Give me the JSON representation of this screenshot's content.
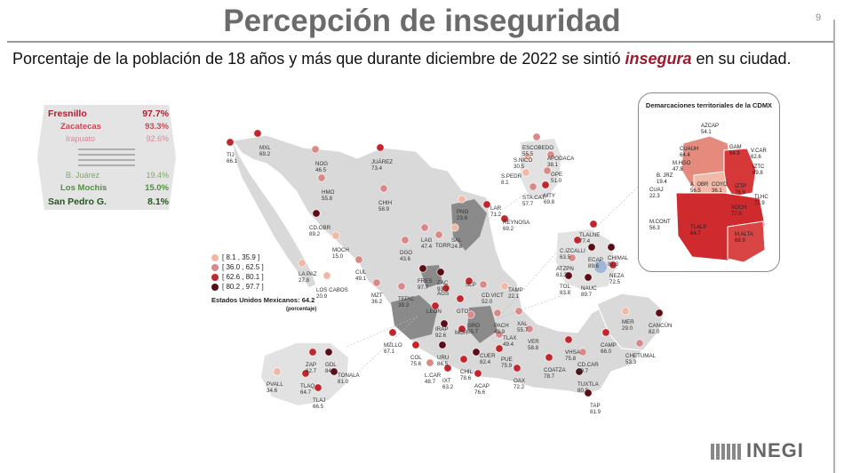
{
  "page": {
    "title": "Percepción de inseguridad",
    "number": "9",
    "subtitle_pre": "Porcentaje de la población de 18 años y más que durante diciembre de 2022 se sintió ",
    "subtitle_hl": "insegura",
    "subtitle_post": " en su ciudad."
  },
  "ranking": {
    "top": [
      {
        "name": "Fresnillo",
        "value": "97.7%"
      },
      {
        "name": "Zacatecas",
        "value": "93.3%"
      },
      {
        "name": "Irapuato",
        "value": "92.6%"
      }
    ],
    "bottom": [
      {
        "name": "B. Juárez",
        "value": "19.4%"
      },
      {
        "name": "Los Mochis",
        "value": "15.0%"
      },
      {
        "name": "San Pedro G.",
        "value": "8.1%"
      }
    ]
  },
  "legend": {
    "items": [
      {
        "label": "[ 8.1 , 35.9 ]",
        "color": "#f2b8a3"
      },
      {
        "label": "[ 36.0 , 62.5 ]",
        "color": "#d98a88"
      },
      {
        "label": "[ 62.6 , 80.1 ]",
        "color": "#c0262c"
      },
      {
        "label": "[ 80.2 , 97.7 ]",
        "color": "#5a0d14"
      }
    ],
    "national_label": "Estados Unidos Mexicanos: 64.2",
    "national_unit": "(porcentaje)"
  },
  "inset": {
    "title": "Demarcaciones territoriales de la CDMX",
    "areas": [
      {
        "name": "AZCAP",
        "value": "54.1"
      },
      {
        "name": "GAM",
        "value": "64.9"
      },
      {
        "name": "CUAUH",
        "value": "64.4"
      },
      {
        "name": "V.CAR",
        "value": "62.6"
      },
      {
        "name": "M.HGO",
        "value": "47.8"
      },
      {
        "name": "IZTC",
        "value": "69.8"
      },
      {
        "name": "B. JRZ",
        "value": "19.4"
      },
      {
        "name": "CUAJ",
        "value": "22.3"
      },
      {
        "name": "A. OBR",
        "value": "56.5"
      },
      {
        "name": "COYO",
        "value": "36.1"
      },
      {
        "name": "IZTP",
        "value": "76.9"
      },
      {
        "name": "TLHC",
        "value": "72.9"
      },
      {
        "name": "XOCH",
        "value": "77.0"
      },
      {
        "name": "M.CONT",
        "value": "56.3"
      },
      {
        "name": "TLALP",
        "value": "64.7"
      },
      {
        "name": "M.ALTA",
        "value": "68.9"
      }
    ]
  },
  "cities": [
    {
      "name": "TIJ",
      "value": "66.1",
      "color": "#c0262c"
    },
    {
      "name": "MXL",
      "value": "69.2",
      "color": "#c0262c"
    },
    {
      "name": "NOG",
      "value": "46.5",
      "color": "#d98a88"
    },
    {
      "name": "JUÁREZ",
      "value": "73.4",
      "color": "#c0262c"
    },
    {
      "name": "HMO",
      "value": "55.8",
      "color": "#d98a88"
    },
    {
      "name": "CHIH",
      "value": "58.9",
      "color": "#d98a88"
    },
    {
      "name": "CD.OBR",
      "value": "89.2",
      "color": "#5a0d14"
    },
    {
      "name": "MOCH",
      "value": "15.0",
      "color": "#f2b8a3"
    },
    {
      "name": "LA PAZ",
      "value": "27.8",
      "color": "#f2b8a3"
    },
    {
      "name": "LOS CABOS",
      "value": "20.9",
      "color": "#f2b8a3"
    },
    {
      "name": "CUL",
      "value": "49.1",
      "color": "#d98a88"
    },
    {
      "name": "MZT",
      "value": "36.2",
      "color": "#d98a88"
    },
    {
      "name": "DGO",
      "value": "43.6",
      "color": "#d98a88"
    },
    {
      "name": "LAG",
      "value": "47.4",
      "color": "#d98a88"
    },
    {
      "name": "TORR",
      "value": "",
      "color": "#d98a88"
    },
    {
      "name": "SAL",
      "value": "24.8",
      "color": "#f2b8a3"
    },
    {
      "name": "PNG",
      "value": "23.6",
      "color": "#f2b8a3"
    },
    {
      "name": "ESCOBEDO",
      "value": "55.5",
      "color": "#d98a88"
    },
    {
      "name": "S.NICO",
      "value": "30.5",
      "color": "#f2b8a3"
    },
    {
      "name": "APODACA",
      "value": "38.1",
      "color": "#d98a88"
    },
    {
      "name": "S.PEDR",
      "value": "8.1",
      "color": "#f2b8a3"
    },
    {
      "name": "GPE",
      "value": "51.0",
      "color": "#d98a88"
    },
    {
      "name": "STA.CAT",
      "value": "57.7",
      "color": "#d98a88"
    },
    {
      "name": "MTY",
      "value": "69.8",
      "color": "#c0262c"
    },
    {
      "name": "LAR",
      "value": "71.2",
      "color": "#c0262c"
    },
    {
      "name": "REYNOSA",
      "value": "69.2",
      "color": "#c0262c"
    },
    {
      "name": "TEPIC",
      "value": "39.3",
      "color": "#d98a88"
    },
    {
      "name": "FRES",
      "value": "97.7",
      "color": "#5a0d14"
    },
    {
      "name": "ZAC",
      "value": "93.3",
      "color": "#5a0d14"
    },
    {
      "name": "AGS",
      "value": "",
      "color": "#c0262c"
    },
    {
      "name": "SLP",
      "value": "",
      "color": "#c0262c"
    },
    {
      "name": "CD.VICT",
      "value": "52.0",
      "color": "#d98a88"
    },
    {
      "name": "TAMP",
      "value": "22.1",
      "color": "#f2b8a3"
    },
    {
      "name": "LEON",
      "value": "",
      "color": "#c0262c"
    },
    {
      "name": "GTO",
      "value": "",
      "color": "#c0262c"
    },
    {
      "name": "IRAP",
      "value": "92.6",
      "color": "#5a0d14"
    },
    {
      "name": "GRO",
      "value": "55.7",
      "color": "#d98a88"
    },
    {
      "name": "PACH",
      "value": "48.9",
      "color": "#d98a88"
    },
    {
      "name": "XAL",
      "value": "55.7",
      "color": "#d98a88"
    },
    {
      "name": "VER",
      "value": "58.8",
      "color": "#d98a88"
    },
    {
      "name": "MZLLO",
      "value": "67.1",
      "color": "#c0262c"
    },
    {
      "name": "COL",
      "value": "75.6",
      "color": "#c0262c"
    },
    {
      "name": "URU",
      "value": "86.5",
      "color": "#5a0d14"
    },
    {
      "name": "MOR",
      "value": "",
      "color": "#c0262c"
    },
    {
      "name": "TLAX",
      "value": "49.4",
      "color": "#d98a88"
    },
    {
      "name": "PUE",
      "value": "75.9",
      "color": "#c0262c"
    },
    {
      "name": "L.CAR",
      "value": "48.7",
      "color": "#d98a88"
    },
    {
      "name": "IXT",
      "value": "63.2",
      "color": "#c0262c"
    },
    {
      "name": "CHIL",
      "value": "78.6",
      "color": "#c0262c"
    },
    {
      "name": "CUER",
      "value": "82.4",
      "color": "#5a0d14"
    },
    {
      "name": "ACAP",
      "value": "76.6",
      "color": "#c0262c"
    },
    {
      "name": "OAX",
      "value": "72.2",
      "color": "#c0262c"
    },
    {
      "name": "COATZA",
      "value": "78.7",
      "color": "#c0262c"
    },
    {
      "name": "VHSA",
      "value": "75.8",
      "color": "#c0262c"
    },
    {
      "name": "CD.CAR",
      "value": "59.7",
      "color": "#d98a88"
    },
    {
      "name": "CAMP",
      "value": "66.0",
      "color": "#c0262c"
    },
    {
      "name": "TUXTLA",
      "value": "80.9",
      "color": "#5a0d14"
    },
    {
      "name": "TAP",
      "value": "81.9",
      "color": "#5a0d14"
    },
    {
      "name": "MER",
      "value": "29.0",
      "color": "#f2b8a3"
    },
    {
      "name": "CANCÚN",
      "value": "82.0",
      "color": "#5a0d14"
    },
    {
      "name": "CHETUMAL",
      "value": "53.3",
      "color": "#d98a88"
    },
    {
      "name": "PVALL",
      "value": "34.6",
      "color": "#f2b8a3"
    },
    {
      "name": "ZAP",
      "value": "62.7",
      "color": "#c0262c"
    },
    {
      "name": "GDL",
      "value": "84.2",
      "color": "#5a0d14"
    },
    {
      "name": "TONALA",
      "value": "81.0",
      "color": "#5a0d14"
    },
    {
      "name": "TLAQ",
      "value": "64.7",
      "color": "#c0262c"
    },
    {
      "name": "TLAJ",
      "value": "66.5",
      "color": "#c0262c"
    },
    {
      "name": "TLALNE",
      "value": "77.4",
      "color": "#c0262c"
    },
    {
      "name": "C.IZCALLI",
      "value": "63.5",
      "color": "#c0262c"
    },
    {
      "name": "ECAP",
      "value": "89.6",
      "color": "#5a0d14"
    },
    {
      "name": "CHIMAL",
      "value": "81.3",
      "color": "#5a0d14"
    },
    {
      "name": "ATZPN",
      "value": "61.3",
      "color": "#d98a88"
    },
    {
      "name": "NEZA",
      "value": "72.5",
      "color": "#c0262c"
    },
    {
      "name": "TOL",
      "value": "83.8",
      "color": "#5a0d14"
    },
    {
      "name": "NAUC",
      "value": "89.7",
      "color": "#5a0d14"
    }
  ],
  "logo": "INEGI"
}
